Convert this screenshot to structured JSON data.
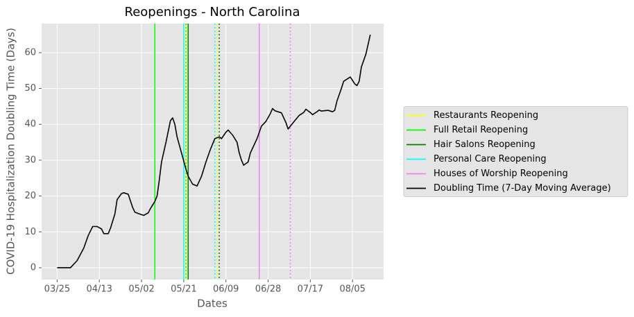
{
  "chart_data": {
    "type": "line",
    "title": "Reopenings - North Carolina",
    "xlabel": "Dates",
    "ylabel": "COVID-19 Hospitalization Doubling Time (Days)",
    "x": [
      "03/25",
      "03/31",
      "04/03",
      "04/06",
      "04/08",
      "04/10",
      "04/12",
      "04/14",
      "04/15",
      "04/17",
      "04/18",
      "04/20",
      "04/21",
      "04/23",
      "04/24",
      "04/26",
      "04/28",
      "04/29",
      "05/01",
      "05/03",
      "05/05",
      "05/06",
      "05/08",
      "05/09",
      "05/10",
      "05/11",
      "05/13",
      "05/14",
      "05/15",
      "05/16",
      "05/17",
      "05/18",
      "05/20",
      "05/22",
      "05/23",
      "05/25",
      "05/27",
      "05/29",
      "05/31",
      "06/02",
      "06/04",
      "06/06",
      "06/07",
      "06/09",
      "06/10",
      "06/12",
      "06/14",
      "06/15",
      "06/16",
      "06/17",
      "06/19",
      "06/20",
      "06/23",
      "06/25",
      "06/27",
      "06/29",
      "06/30",
      "07/01",
      "07/04",
      "07/06",
      "07/07",
      "07/10",
      "07/12",
      "07/14",
      "07/15",
      "07/17",
      "07/18",
      "07/20",
      "07/21",
      "07/22",
      "07/25",
      "07/27",
      "07/28",
      "07/29",
      "07/31",
      "08/01",
      "08/03",
      "08/04",
      "08/06",
      "08/07",
      "08/08",
      "08/09",
      "08/11",
      "08/13"
    ],
    "series": [
      {
        "name": "Doubling Time (7-Day Moving Average)",
        "color": "#000000",
        "values": [
          0,
          0,
          2,
          5.5,
          9,
          11.5,
          11.5,
          10.8,
          9.5,
          9.5,
          11,
          15,
          19,
          20.7,
          20.9,
          20.5,
          16.8,
          15.5,
          15,
          14.6,
          15.3,
          16.5,
          18.5,
          20,
          24.5,
          29.5,
          35,
          38,
          41,
          41.8,
          40,
          36.5,
          32,
          27.5,
          25.5,
          23.3,
          22.8,
          25.5,
          29.5,
          33,
          36,
          36.5,
          36,
          37.8,
          38.4,
          37,
          35,
          32,
          30,
          28.6,
          29.5,
          32,
          36,
          39.5,
          40.8,
          43,
          44.4,
          43.8,
          43.2,
          40.5,
          38.7,
          41,
          42.5,
          43.3,
          44.2,
          43.3,
          42.7,
          43.5,
          44,
          43.7,
          43.9,
          43.5,
          43.9,
          46.5,
          50,
          52,
          52.8,
          53.2,
          51.3,
          50.8,
          52,
          56,
          59.5,
          65
        ]
      }
    ],
    "markers": [
      {
        "name": "Restaurants Reopening",
        "color": "#ffff00",
        "dates": [
          "05/22",
          "06/05"
        ]
      },
      {
        "name": "Full Retail Reopening",
        "color": "#00ff00",
        "dates": [
          "05/08",
          "05/22"
        ]
      },
      {
        "name": "Hair Salons Reopening",
        "color": "#008000",
        "dates": [
          "05/23",
          "06/06"
        ]
      },
      {
        "name": "Personal Care Reopening",
        "color": "#00ffff",
        "dates": [
          "05/21",
          "06/04"
        ]
      },
      {
        "name": "Houses of Worship Reopening",
        "color": "#ee82ee",
        "dates": [
          "06/24",
          "07/08"
        ]
      }
    ],
    "xlim": [
      "03/18",
      "08/19"
    ],
    "xticks": [
      "03/25",
      "04/13",
      "05/02",
      "05/21",
      "06/09",
      "06/28",
      "07/17",
      "08/05"
    ],
    "ylim": [
      -3.3,
      68.1
    ],
    "yticks": [
      0,
      10,
      20,
      30,
      40,
      50,
      60
    ],
    "grid": true,
    "legend": "right"
  }
}
